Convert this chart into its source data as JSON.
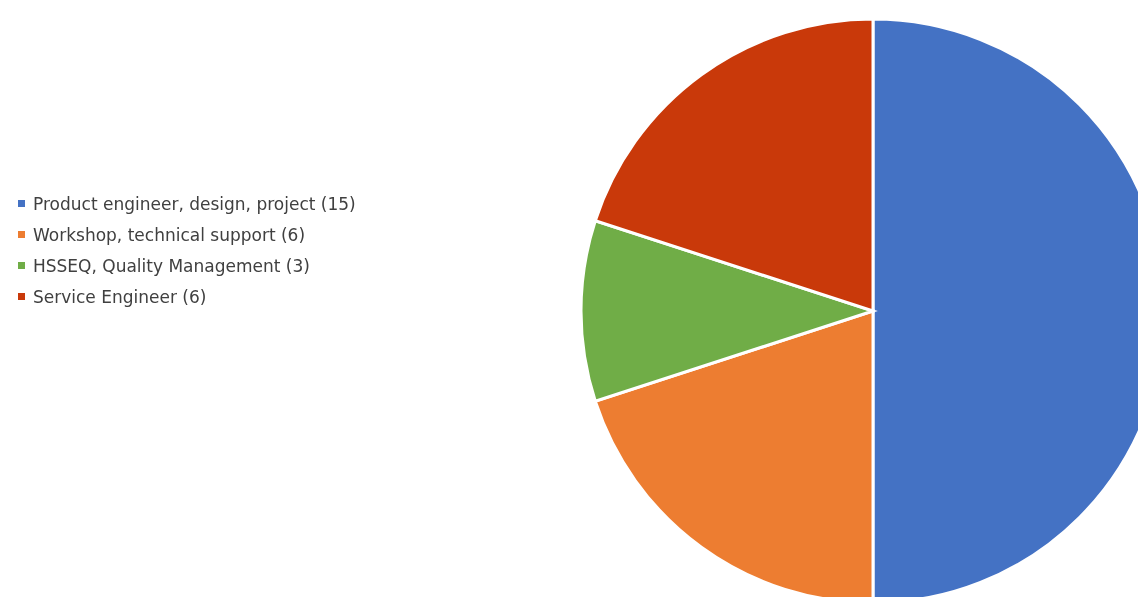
{
  "chart_data": {
    "type": "pie",
    "categories": [
      "Product engineer, design, project (15)",
      "Workshop, technical support (6)",
      "HSSEQ, Quality Management (3)",
      "Service Engineer (6)"
    ],
    "values": [
      15,
      6,
      3,
      6
    ],
    "colors": [
      "#4472c4",
      "#ed7d31",
      "#70ad47",
      "#c9390a"
    ],
    "legend": "left"
  }
}
